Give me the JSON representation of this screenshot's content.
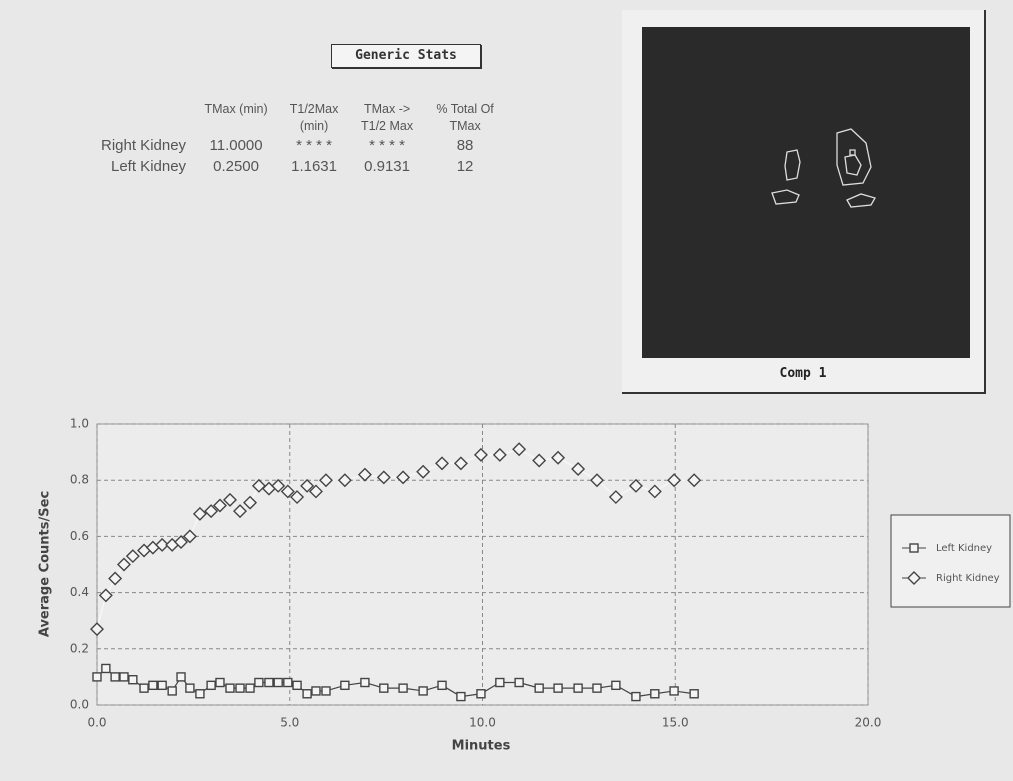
{
  "stats_button": "Generic Stats",
  "stats_table": {
    "header": [
      "",
      "TMax (min)",
      "T1/2Max (min)",
      "TMax -> T1/2 Max",
      "% Total Of TMax"
    ],
    "rows": [
      [
        "Right Kidney",
        "11.0000",
        "* * * *",
        "* * * *",
        "88"
      ],
      [
        "Left Kidney",
        "0.2500",
        "1.1631",
        "0.9131",
        "12"
      ]
    ]
  },
  "image_panel": {
    "caption": "Comp 1"
  },
  "chart_data": {
    "type": "line",
    "xlabel": "Minutes",
    "ylabel": "Average Counts/Sec",
    "x": [
      0,
      0.23,
      0.47,
      0.7,
      0.93,
      1.22,
      1.45,
      1.69,
      1.95,
      2.18,
      2.41,
      2.67,
      2.96,
      3.19,
      3.45,
      3.71,
      3.97,
      4.2,
      4.46,
      4.7,
      4.95,
      5.19,
      5.45,
      5.68,
      5.94,
      6.43,
      6.95,
      7.44,
      7.94,
      8.46,
      8.95,
      9.44,
      9.96,
      10.45,
      10.95,
      11.47,
      11.96,
      12.48,
      12.97,
      13.46,
      13.98,
      14.47,
      14.97,
      15.49
    ],
    "series": [
      {
        "name": "Left Kidney",
        "color": "#444444",
        "marker": "square",
        "values": [
          0.1,
          0.13,
          0.1,
          0.1,
          0.09,
          0.06,
          0.07,
          0.07,
          0.05,
          0.1,
          0.06,
          0.04,
          0.07,
          0.08,
          0.06,
          0.06,
          0.06,
          0.08,
          0.08,
          0.08,
          0.08,
          0.07,
          0.04,
          0.05,
          0.05,
          0.07,
          0.08,
          0.06,
          0.06,
          0.05,
          0.07,
          0.03,
          0.04,
          0.08,
          0.08,
          0.06,
          0.06,
          0.06,
          0.06,
          0.07,
          0.03,
          0.04,
          0.05,
          0.04
        ]
      },
      {
        "name": "Right Kidney",
        "color": "#444444",
        "marker": "diamond",
        "values": [
          0.27,
          0.39,
          0.45,
          0.5,
          0.53,
          0.55,
          0.56,
          0.57,
          0.57,
          0.58,
          0.6,
          0.68,
          0.69,
          0.71,
          0.73,
          0.69,
          0.72,
          0.78,
          0.77,
          0.78,
          0.76,
          0.74,
          0.78,
          0.76,
          0.8,
          0.8,
          0.82,
          0.81,
          0.81,
          0.83,
          0.86,
          0.86,
          0.89,
          0.89,
          0.91,
          0.87,
          0.88,
          0.84,
          0.8,
          0.74,
          0.78,
          0.76,
          0.8,
          0.8
        ]
      }
    ],
    "xlim": [
      0,
      20
    ],
    "ylim": [
      0,
      1
    ],
    "xticks": [
      {
        "value": 0,
        "label": "0.0"
      },
      {
        "value": 5,
        "label": "5.0"
      },
      {
        "value": 10,
        "label": "10.0"
      },
      {
        "value": 15,
        "label": "15.0"
      },
      {
        "value": 20,
        "label": "20.0"
      }
    ],
    "yticks": [
      {
        "value": 0,
        "label": "0.0"
      },
      0.2,
      0.4,
      0.6,
      0.8,
      {
        "value": 1,
        "label": "1.0"
      }
    ],
    "grid": true,
    "legend": "right"
  }
}
